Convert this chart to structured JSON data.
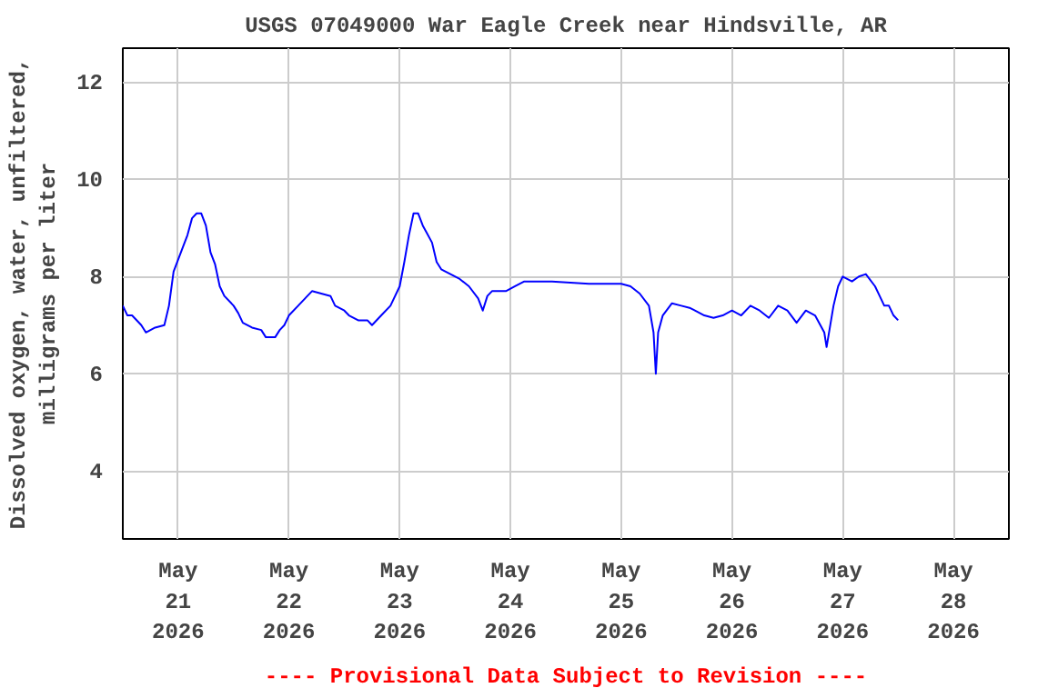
{
  "chart_data": {
    "type": "line",
    "title": "USGS 07049000 War Eagle Creek near Hindsville, AR",
    "ylabel": "Dissolved oxygen, water, unfiltered,\nmilligrams per liter",
    "annotations": [
      "---- Provisional Data Subject to Revision ----"
    ],
    "x": [
      "2026-05-20T12:00",
      "2026-05-20T13:00",
      "2026-05-20T14:00",
      "2026-05-20T16:00",
      "2026-05-20T17:00",
      "2026-05-20T19:00",
      "2026-05-20T21:00",
      "2026-05-20T22:00",
      "2026-05-20T23:00",
      "2026-05-21T01:00",
      "2026-05-21T02:00",
      "2026-05-21T03:00",
      "2026-05-21T04:00",
      "2026-05-21T05:00",
      "2026-05-21T06:00",
      "2026-05-21T07:00",
      "2026-05-21T08:00",
      "2026-05-21T09:00",
      "2026-05-21T10:00",
      "2026-05-21T12:00",
      "2026-05-21T13:00",
      "2026-05-21T14:00",
      "2026-05-21T16:00",
      "2026-05-21T18:00",
      "2026-05-21T19:00",
      "2026-05-21T21:00",
      "2026-05-21T22:00",
      "2026-05-21T23:00",
      "2026-05-22T00:00",
      "2026-05-22T02:00",
      "2026-05-22T04:00",
      "2026-05-22T05:00",
      "2026-05-22T07:00",
      "2026-05-22T09:00",
      "2026-05-22T10:00",
      "2026-05-22T12:00",
      "2026-05-22T13:00",
      "2026-05-22T15:00",
      "2026-05-22T17:00",
      "2026-05-22T18:00",
      "2026-05-22T20:00",
      "2026-05-22T22:00",
      "2026-05-23T00:00",
      "2026-05-23T01:00",
      "2026-05-23T02:00",
      "2026-05-23T03:00",
      "2026-05-23T04:00",
      "2026-05-23T05:00",
      "2026-05-23T07:00",
      "2026-05-23T08:00",
      "2026-05-23T09:00",
      "2026-05-23T11:00",
      "2026-05-23T13:00",
      "2026-05-23T15:00",
      "2026-05-23T17:00",
      "2026-05-23T18:00",
      "2026-05-23T19:00",
      "2026-05-23T20:00",
      "2026-05-23T23:00",
      "2026-05-24T01:00",
      "2026-05-24T03:00",
      "2026-05-24T09:00",
      "2026-05-24T17:00",
      "2026-05-25T00:00",
      "2026-05-25T02:00",
      "2026-05-25T04:00",
      "2026-05-25T06:00",
      "2026-05-25T07:00",
      "2026-05-25T07:30",
      "2026-05-25T08:00",
      "2026-05-25T09:00",
      "2026-05-25T11:00",
      "2026-05-25T13:00",
      "2026-05-25T15:00",
      "2026-05-25T18:00",
      "2026-05-25T20:00",
      "2026-05-25T22:00",
      "2026-05-26T00:00",
      "2026-05-26T02:00",
      "2026-05-26T04:00",
      "2026-05-26T06:00",
      "2026-05-26T08:00",
      "2026-05-26T10:00",
      "2026-05-26T12:00",
      "2026-05-26T14:00",
      "2026-05-26T16:00",
      "2026-05-26T18:00",
      "2026-05-26T20:00",
      "2026-05-26T20:30",
      "2026-05-26T22:00",
      "2026-05-26T23:00",
      "2026-05-27T00:00",
      "2026-05-27T02:00",
      "2026-05-27T03:30",
      "2026-05-27T05:00",
      "2026-05-27T07:00",
      "2026-05-27T08:00",
      "2026-05-27T09:00",
      "2026-05-27T10:00",
      "2026-05-27T11:00",
      "2026-05-27T12:00"
    ],
    "series": [
      {
        "color": "#0000ff",
        "values": [
          7.4,
          7.2,
          7.2,
          7.0,
          6.85,
          6.95,
          7.0,
          7.4,
          8.1,
          8.6,
          8.85,
          9.2,
          9.3,
          9.3,
          9.05,
          8.5,
          8.25,
          7.8,
          7.6,
          7.4,
          7.25,
          7.05,
          6.95,
          6.9,
          6.75,
          6.75,
          6.9,
          7.0,
          7.2,
          7.4,
          7.6,
          7.7,
          7.65,
          7.6,
          7.4,
          7.3,
          7.2,
          7.1,
          7.1,
          7.0,
          7.2,
          7.4,
          7.8,
          8.3,
          8.85,
          9.3,
          9.3,
          9.05,
          8.7,
          8.3,
          8.15,
          8.05,
          7.95,
          7.8,
          7.55,
          7.3,
          7.6,
          7.7,
          7.7,
          7.8,
          7.9,
          7.9,
          7.85,
          7.85,
          7.8,
          7.65,
          7.4,
          6.85,
          6.0,
          6.85,
          7.2,
          7.45,
          7.4,
          7.35,
          7.2,
          7.15,
          7.2,
          7.3,
          7.2,
          7.4,
          7.3,
          7.15,
          7.4,
          7.3,
          7.05,
          7.3,
          7.2,
          6.85,
          6.55,
          7.4,
          7.8,
          8.0,
          7.9,
          8.0,
          8.05,
          7.8,
          7.6,
          7.4,
          7.4,
          7.2,
          7.1
        ]
      }
    ],
    "xlim": [
      "2026-05-20T12:00",
      "2026-05-28T12:00"
    ],
    "xticks": [
      {
        "value": "2026-05-21",
        "label": "May\n21\n2026"
      },
      {
        "value": "2026-05-22",
        "label": "May\n22\n2026"
      },
      {
        "value": "2026-05-23",
        "label": "May\n23\n2026"
      },
      {
        "value": "2026-05-24",
        "label": "May\n24\n2026"
      },
      {
        "value": "2026-05-25",
        "label": "May\n25\n2026"
      },
      {
        "value": "2026-05-26",
        "label": "May\n26\n2026"
      },
      {
        "value": "2026-05-27",
        "label": "May\n27\n2026"
      },
      {
        "value": "2026-05-28",
        "label": "May\n28\n2026"
      }
    ],
    "ylim": [
      2.6,
      12.7
    ],
    "yticks": [
      4,
      6,
      8,
      10,
      12
    ],
    "grid": true,
    "line_style": "solid",
    "marker": "none"
  }
}
